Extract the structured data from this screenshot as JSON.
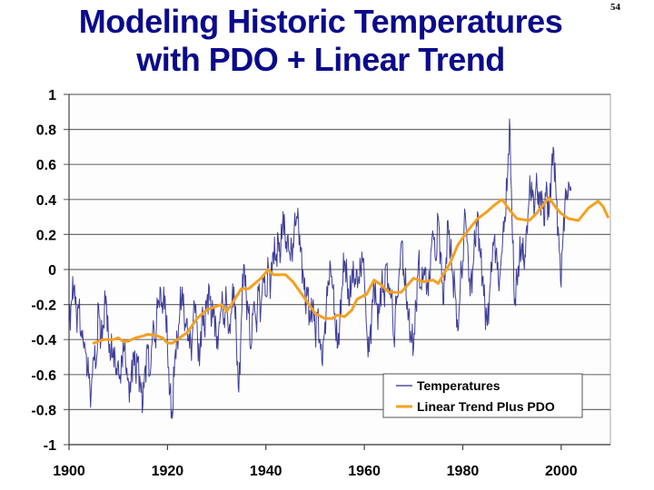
{
  "slide": {
    "title_line1": "Modeling Historic Temperatures",
    "title_line2": "with PDO + Linear Trend",
    "page_number": "54",
    "title_color": "#0a0a8c"
  },
  "chart_data": {
    "type": "line",
    "title": "Modeling Historic Temperatures with PDO + Linear Trend",
    "xlabel": "",
    "ylabel": "",
    "xlim": [
      1900,
      2010
    ],
    "ylim": [
      -1,
      1
    ],
    "x_ticks": [
      1900,
      1920,
      1940,
      1960,
      1980,
      2000
    ],
    "x_tick_labels": [
      "1900",
      "1920",
      "1940",
      "1960",
      "1980",
      "2000"
    ],
    "y_ticks": [
      1,
      0.8,
      0.6,
      0.4,
      0.2,
      0,
      -0.2,
      -0.4,
      -0.6,
      -0.8,
      -1
    ],
    "y_tick_labels": [
      "1",
      "0.8",
      "0.6",
      "0.4",
      "0.2",
      "0",
      "-0.2",
      "-0.4",
      "-0.6",
      "-0.8",
      "-1"
    ],
    "grid": "horizontal",
    "legend_position": "bottom-right",
    "series": [
      {
        "name": "Temperatures",
        "color": "#2b2b8f",
        "x_start": 1900,
        "x_step": 0.5,
        "values": [
          -0.3,
          -0.18,
          -0.1,
          -0.25,
          -0.22,
          -0.35,
          -0.45,
          -0.48,
          -0.62,
          -0.7,
          -0.5,
          -0.55,
          -0.2,
          -0.4,
          -0.32,
          -0.15,
          -0.38,
          -0.5,
          -0.45,
          -0.6,
          -0.52,
          -0.65,
          -0.4,
          -0.55,
          -0.62,
          -0.7,
          -0.48,
          -0.58,
          -0.5,
          -0.66,
          -0.78,
          -0.55,
          -0.45,
          -0.6,
          -0.35,
          -0.4,
          -0.22,
          -0.1,
          -0.25,
          -0.15,
          -0.45,
          -0.7,
          -0.85,
          -0.5,
          -0.4,
          -0.25,
          -0.1,
          -0.35,
          -0.28,
          -0.45,
          -0.4,
          -0.2,
          -0.3,
          -0.55,
          -0.25,
          -0.35,
          -0.18,
          -0.1,
          -0.3,
          -0.22,
          -0.45,
          -0.3,
          -0.2,
          -0.28,
          -0.18,
          -0.35,
          -0.25,
          -0.1,
          -0.4,
          -0.7,
          -0.3,
          0.03,
          -0.15,
          -0.25,
          -0.45,
          -0.2,
          -0.3,
          -0.12,
          -0.22,
          -0.05,
          -0.15,
          0.02,
          -0.08,
          0.1,
          0.05,
          0.18,
          0.08,
          0.33,
          0.12,
          0.2,
          0.05,
          0.15,
          0.25,
          0.35,
          0.1,
          0.0,
          -0.2,
          -0.1,
          -0.3,
          -0.2,
          -0.35,
          -0.25,
          -0.4,
          -0.55,
          -0.3,
          -0.15,
          0.05,
          -0.1,
          -0.25,
          -0.45,
          -0.3,
          -0.1,
          0.05,
          -0.05,
          -0.2,
          0.0,
          -0.1,
          0.0,
          -0.08,
          0.1,
          -0.05,
          -0.35,
          -0.47,
          -0.25,
          -0.1,
          -0.2,
          -0.25,
          -0.08,
          -0.15,
          0.03,
          -0.1,
          -0.15,
          -0.4,
          -0.2,
          -0.05,
          0.15,
          0.0,
          -0.15,
          -0.25,
          -0.4,
          -0.45,
          -0.2,
          0.05,
          -0.1,
          -0.05,
          0.0,
          -0.15,
          0.1,
          0.2,
          0.05,
          0.3,
          0.1,
          -0.2,
          0.0,
          0.28,
          0.1,
          -0.05,
          -0.15,
          -0.35,
          -0.1,
          0.05,
          0.32,
          0.15,
          -0.15,
          0.0,
          0.15,
          0.33,
          0.1,
          -0.05,
          -0.2,
          -0.32,
          -0.1,
          0.05,
          0.2,
          0.0,
          -0.05,
          0.1,
          0.3,
          0.45,
          0.86,
          0.3,
          -0.2,
          -0.05,
          0.05,
          0.15,
          0.0,
          0.25,
          0.4,
          0.5,
          0.3,
          0.55,
          0.35,
          0.45,
          0.25,
          0.5,
          0.3,
          0.55,
          0.68,
          0.4,
          0.2,
          -0.1,
          0.3,
          0.4,
          0.5,
          0.45
        ]
      },
      {
        "name": "Linear Trend Plus PDO",
        "color": "#f5a020",
        "points": [
          [
            1905,
            -0.42
          ],
          [
            1907,
            -0.4
          ],
          [
            1909,
            -0.4
          ],
          [
            1910,
            -0.39
          ],
          [
            1911,
            -0.41
          ],
          [
            1912,
            -0.41
          ],
          [
            1913.5,
            -0.39
          ],
          [
            1915,
            -0.38
          ],
          [
            1916,
            -0.37
          ],
          [
            1918,
            -0.38
          ],
          [
            1919,
            -0.39
          ],
          [
            1920,
            -0.42
          ],
          [
            1921,
            -0.42
          ],
          [
            1922,
            -0.4
          ],
          [
            1924,
            -0.36
          ],
          [
            1926,
            -0.28
          ],
          [
            1928,
            -0.23
          ],
          [
            1930,
            -0.21
          ],
          [
            1931,
            -0.2
          ],
          [
            1932,
            -0.24
          ],
          [
            1933,
            -0.2
          ],
          [
            1935,
            -0.11
          ],
          [
            1936.5,
            -0.11
          ],
          [
            1939,
            -0.05
          ],
          [
            1940.5,
            0.0
          ],
          [
            1941.5,
            -0.03
          ],
          [
            1944,
            -0.03
          ],
          [
            1945.5,
            -0.07
          ],
          [
            1948,
            -0.17
          ],
          [
            1950,
            -0.25
          ],
          [
            1952,
            -0.28
          ],
          [
            1953.5,
            -0.28
          ],
          [
            1954.5,
            -0.26
          ],
          [
            1956,
            -0.27
          ],
          [
            1957.5,
            -0.23
          ],
          [
            1958.5,
            -0.17
          ],
          [
            1960.5,
            -0.14
          ],
          [
            1962,
            -0.06
          ],
          [
            1963.5,
            -0.09
          ],
          [
            1965,
            -0.13
          ],
          [
            1967.5,
            -0.13
          ],
          [
            1970,
            -0.05
          ],
          [
            1972,
            -0.07
          ],
          [
            1974,
            -0.06
          ],
          [
            1975,
            -0.08
          ],
          [
            1977.5,
            0.04
          ],
          [
            1979,
            0.14
          ],
          [
            1981,
            0.22
          ],
          [
            1983,
            0.29
          ],
          [
            1984.5,
            0.32
          ],
          [
            1986.5,
            0.37
          ],
          [
            1988,
            0.4
          ],
          [
            1989.5,
            0.34
          ],
          [
            1991,
            0.29
          ],
          [
            1993.5,
            0.28
          ],
          [
            1995,
            0.32
          ],
          [
            1997.5,
            0.41
          ],
          [
            1999,
            0.35
          ],
          [
            2000,
            0.32
          ],
          [
            2001.5,
            0.29
          ],
          [
            2003.5,
            0.28
          ],
          [
            2005.5,
            0.35
          ],
          [
            2007.5,
            0.39
          ],
          [
            2008.5,
            0.36
          ],
          [
            2009.5,
            0.3
          ]
        ]
      }
    ]
  },
  "legend": {
    "items": [
      {
        "label": "Temperatures",
        "color": "#2b2b8f"
      },
      {
        "label": "Linear Trend Plus PDO",
        "color": "#f5a020"
      }
    ]
  }
}
